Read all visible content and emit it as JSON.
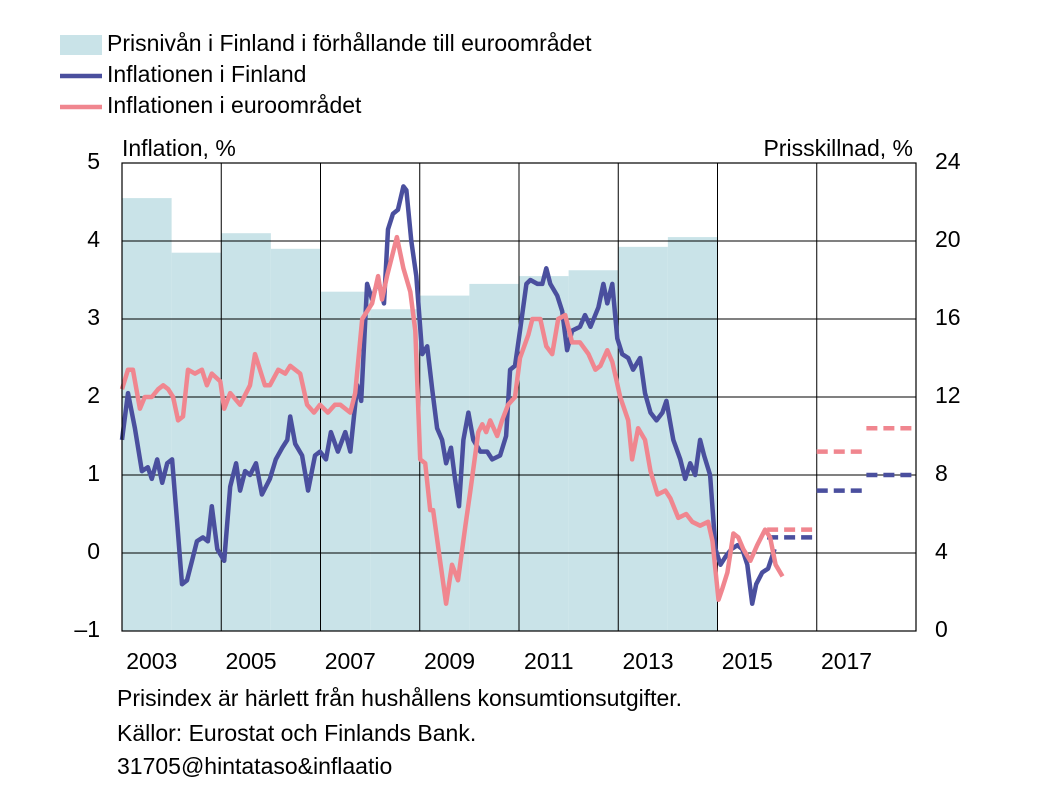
{
  "chart_data": {
    "type": "combo",
    "ylabel": "Inflation, %",
    "y2label": "Prisskillnad, %",
    "legend": "top",
    "grid": true,
    "xlim": [
      2003,
      2019
    ],
    "xticks": [
      2003,
      2005,
      2007,
      2009,
      2011,
      2013,
      2015,
      2017
    ],
    "ylim": [
      -1,
      5
    ],
    "yticks": [
      {
        "value": -1,
        "label": "–1"
      },
      0,
      1,
      2,
      3,
      4,
      5
    ],
    "y2lim": [
      0,
      24
    ],
    "y2ticks": [
      0,
      4,
      8,
      12,
      16,
      20,
      24
    ],
    "series": [
      {
        "name": "Prisnivån i Finland i förhållande till euroområdet",
        "type": "bar",
        "axis": "y2",
        "color": "#c9e3e8",
        "x": [
          2003,
          2004,
          2005,
          2006,
          2007,
          2008,
          2009,
          2010,
          2011,
          2012,
          2013,
          2014
        ],
        "values": [
          22.2,
          19.4,
          20.4,
          19.6,
          17.4,
          16.5,
          17.2,
          17.8,
          18.2,
          18.5,
          19.7,
          20.2
        ]
      },
      {
        "name": "Inflationen i Finland",
        "type": "line",
        "color": "#4a4f9e",
        "x": [
          2003.0,
          2003.12,
          2003.26,
          2003.4,
          2003.52,
          2003.6,
          2003.71,
          2003.81,
          2003.91,
          2004.01,
          2004.11,
          2004.21,
          2004.31,
          2004.41,
          2004.51,
          2004.63,
          2004.73,
          2004.81,
          2004.92,
          2005.06,
          2005.18,
          2005.3,
          2005.38,
          2005.48,
          2005.58,
          2005.7,
          2005.82,
          2005.98,
          2006.1,
          2006.23,
          2006.33,
          2006.39,
          2006.49,
          2006.63,
          2006.75,
          2006.89,
          2006.99,
          2007.11,
          2007.21,
          2007.35,
          2007.5,
          2007.6,
          2007.74,
          2007.82,
          2007.94,
          2008.04,
          2008.16,
          2008.28,
          2008.36,
          2008.46,
          2008.56,
          2008.67,
          2008.73,
          2008.83,
          2008.93,
          2009.05,
          2009.15,
          2009.25,
          2009.35,
          2009.45,
          2009.53,
          2009.63,
          2009.71,
          2009.79,
          2009.88,
          2009.98,
          2010.08,
          2010.22,
          2010.36,
          2010.46,
          2010.62,
          2010.74,
          2010.82,
          2010.92,
          2011.02,
          2011.15,
          2011.23,
          2011.37,
          2011.47,
          2011.55,
          2011.63,
          2011.77,
          2011.87,
          2011.97,
          2012.07,
          2012.23,
          2012.33,
          2012.44,
          2012.6,
          2012.7,
          2012.78,
          2012.88,
          2012.98,
          2013.08,
          2013.2,
          2013.3,
          2013.44,
          2013.54,
          2013.65,
          2013.77,
          2013.89,
          2013.97,
          2014.11,
          2014.25,
          2014.35,
          2014.45,
          2014.55,
          2014.65,
          2014.73,
          2014.85,
          2014.96,
          2015.06,
          2015.16,
          2015.28,
          2015.4,
          2015.5,
          2015.6,
          2015.7,
          2015.78,
          2015.9,
          2016.02,
          2016.15
        ],
        "values": [
          1.45,
          2.05,
          1.6,
          1.05,
          1.1,
          0.95,
          1.2,
          0.9,
          1.15,
          1.2,
          0.4,
          -0.4,
          -0.35,
          -0.1,
          0.15,
          0.2,
          0.15,
          0.6,
          0.05,
          -0.1,
          0.85,
          1.15,
          0.8,
          1.05,
          1.0,
          1.15,
          0.75,
          0.95,
          1.2,
          1.35,
          1.45,
          1.75,
          1.4,
          1.25,
          0.8,
          1.25,
          1.3,
          1.2,
          1.55,
          1.3,
          1.55,
          1.3,
          2.15,
          1.95,
          3.45,
          3.25,
          3.5,
          3.2,
          4.15,
          4.35,
          4.4,
          4.7,
          4.65,
          4.0,
          3.55,
          2.55,
          2.65,
          2.1,
          1.6,
          1.45,
          1.15,
          1.35,
          0.95,
          0.6,
          1.45,
          1.8,
          1.45,
          1.3,
          1.3,
          1.2,
          1.25,
          1.5,
          2.35,
          2.4,
          2.85,
          3.45,
          3.5,
          3.45,
          3.45,
          3.65,
          3.45,
          3.3,
          3.1,
          2.6,
          2.85,
          2.9,
          3.05,
          2.9,
          3.15,
          3.45,
          3.2,
          3.45,
          2.75,
          2.55,
          2.5,
          2.35,
          2.5,
          2.05,
          1.8,
          1.7,
          1.8,
          1.95,
          1.45,
          1.2,
          0.95,
          1.15,
          1.0,
          1.45,
          1.25,
          1.0,
          0.05,
          -0.15,
          -0.05,
          0.05,
          0.1,
          0.05,
          -0.15,
          -0.65,
          -0.4,
          -0.25,
          -0.2,
          0.05
        ],
        "forecast": {
          "x": [
            2016,
            2017,
            2018
          ],
          "values": [
            0.2,
            0.8,
            1.0
          ]
        }
      },
      {
        "name": "Inflationen i euroområdet",
        "type": "line",
        "color": "#f0868f",
        "x": [
          2003.0,
          2003.12,
          2003.22,
          2003.36,
          2003.46,
          2003.6,
          2003.73,
          2003.83,
          2003.93,
          2004.03,
          2004.13,
          2004.23,
          2004.33,
          2004.47,
          2004.61,
          2004.71,
          2004.81,
          2004.98,
          2005.06,
          2005.18,
          2005.38,
          2005.58,
          2005.68,
          2005.88,
          2005.98,
          2006.15,
          2006.29,
          2006.39,
          2006.59,
          2006.73,
          2006.87,
          2006.99,
          2007.15,
          2007.29,
          2007.4,
          2007.6,
          2007.7,
          2007.84,
          2008.04,
          2008.16,
          2008.24,
          2008.34,
          2008.54,
          2008.67,
          2008.81,
          2008.91,
          2009.01,
          2009.11,
          2009.21,
          2009.27,
          2009.41,
          2009.53,
          2009.65,
          2009.77,
          2009.92,
          2010.02,
          2010.18,
          2010.26,
          2010.34,
          2010.42,
          2010.56,
          2010.66,
          2010.78,
          2010.92,
          2011.02,
          2011.19,
          2011.27,
          2011.43,
          2011.55,
          2011.67,
          2011.79,
          2011.93,
          2012.07,
          2012.23,
          2012.4,
          2012.54,
          2012.64,
          2012.78,
          2012.88,
          2013.04,
          2013.2,
          2013.28,
          2013.4,
          2013.54,
          2013.65,
          2013.79,
          2013.95,
          2014.05,
          2014.21,
          2014.37,
          2014.49,
          2014.65,
          2014.81,
          2014.9,
          2015.02,
          2015.1,
          2015.2,
          2015.32,
          2015.42,
          2015.52,
          2015.66,
          2015.8,
          2015.96,
          2016.06,
          2016.17,
          2016.31
        ],
        "values": [
          2.1,
          2.35,
          2.35,
          1.85,
          2.0,
          2.0,
          2.1,
          2.15,
          2.1,
          2.0,
          1.7,
          1.75,
          2.35,
          2.3,
          2.35,
          2.15,
          2.3,
          2.2,
          1.85,
          2.05,
          1.9,
          2.15,
          2.55,
          2.15,
          2.15,
          2.35,
          2.3,
          2.4,
          2.3,
          1.9,
          1.8,
          1.9,
          1.8,
          1.9,
          1.9,
          1.8,
          2.05,
          3.0,
          3.2,
          3.55,
          3.25,
          3.55,
          4.05,
          3.65,
          3.35,
          2.85,
          1.2,
          1.15,
          0.55,
          0.55,
          -0.1,
          -0.65,
          -0.15,
          -0.35,
          0.35,
          0.8,
          1.55,
          1.65,
          1.55,
          1.7,
          1.5,
          1.7,
          1.9,
          2.0,
          2.5,
          2.8,
          3.0,
          3.0,
          2.65,
          2.55,
          3.0,
          3.05,
          2.7,
          2.7,
          2.55,
          2.35,
          2.4,
          2.6,
          2.45,
          2.0,
          1.7,
          1.2,
          1.6,
          1.45,
          1.05,
          0.75,
          0.8,
          0.7,
          0.45,
          0.5,
          0.4,
          0.35,
          0.4,
          0.15,
          -0.6,
          -0.45,
          -0.25,
          0.25,
          0.2,
          0.05,
          -0.1,
          0.1,
          0.3,
          0.2,
          -0.15,
          -0.3
        ],
        "forecast": {
          "x": [
            2016,
            2017,
            2018
          ],
          "values": [
            0.3,
            1.3,
            1.6
          ]
        }
      }
    ],
    "notes": [
      "Prisindex är härlett från hushållens konsumtionsutgifter.",
      "Källor: Eurostat och Finlands Bank.",
      "31705@hintataso&inflaatio"
    ]
  }
}
